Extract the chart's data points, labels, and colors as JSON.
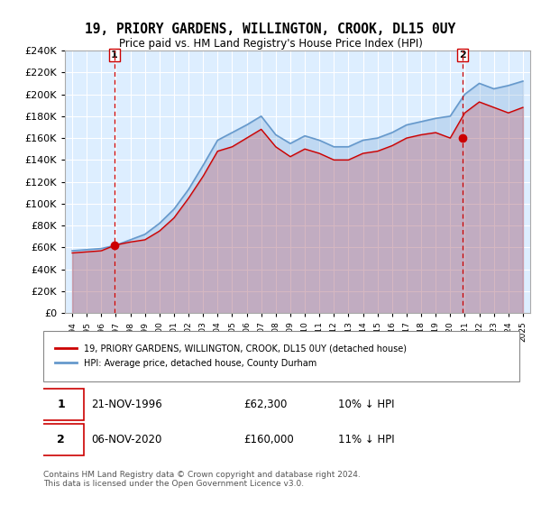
{
  "title": "19, PRIORY GARDENS, WILLINGTON, CROOK, DL15 0UY",
  "subtitle": "Price paid vs. HM Land Registry's House Price Index (HPI)",
  "legend_entry1": "19, PRIORY GARDENS, WILLINGTON, CROOK, DL15 0UY (detached house)",
  "legend_entry2": "HPI: Average price, detached house, County Durham",
  "sale1_label": "1",
  "sale1_date": "21-NOV-1996",
  "sale1_price": "£62,300",
  "sale1_hpi": "10% ↓ HPI",
  "sale2_label": "2",
  "sale2_date": "06-NOV-2020",
  "sale2_price": "£160,000",
  "sale2_hpi": "11% ↓ HPI",
  "footer": "Contains HM Land Registry data © Crown copyright and database right 2024.\nThis data is licensed under the Open Government Licence v3.0.",
  "ylim": [
    0,
    240000
  ],
  "yticks": [
    0,
    20000,
    40000,
    60000,
    80000,
    100000,
    120000,
    140000,
    160000,
    180000,
    200000,
    220000,
    240000
  ],
  "xlim_start": 1993.5,
  "xlim_end": 2025.5,
  "hpi_color": "#6699cc",
  "price_color": "#cc0000",
  "point_color": "#cc0000",
  "bg_color": "#ddeeff",
  "hatch_color": "#cccccc",
  "sale1_x": 1996.9,
  "sale2_x": 2020.85,
  "hpi_data_x": [
    1994,
    1995,
    1996,
    1997,
    1998,
    1999,
    2000,
    2001,
    2002,
    2003,
    2004,
    2005,
    2006,
    2007,
    2008,
    2009,
    2010,
    2011,
    2012,
    2013,
    2014,
    2015,
    2016,
    2017,
    2018,
    2019,
    2020,
    2021,
    2022,
    2023,
    2024,
    2025
  ],
  "hpi_data_y": [
    57000,
    58000,
    59000,
    62000,
    67000,
    72000,
    82000,
    95000,
    113000,
    135000,
    158000,
    165000,
    172000,
    180000,
    163000,
    155000,
    162000,
    158000,
    152000,
    152000,
    158000,
    160000,
    165000,
    172000,
    175000,
    178000,
    180000,
    200000,
    210000,
    205000,
    208000,
    212000
  ],
  "price_data_x": [
    1994,
    1995,
    1996,
    1997,
    1998,
    1999,
    2000,
    2001,
    2002,
    2003,
    2004,
    2005,
    2006,
    2007,
    2008,
    2009,
    2010,
    2011,
    2012,
    2013,
    2014,
    2015,
    2016,
    2017,
    2018,
    2019,
    2020,
    2021,
    2022,
    2023,
    2024,
    2025
  ],
  "price_data_y": [
    55000,
    56000,
    57000,
    62300,
    65000,
    67000,
    75000,
    87000,
    105000,
    125000,
    148000,
    152000,
    160000,
    168000,
    152000,
    143000,
    150000,
    146000,
    140000,
    140000,
    146000,
    148000,
    153000,
    160000,
    163000,
    165000,
    160000,
    183000,
    193000,
    188000,
    183000,
    188000
  ],
  "sale1_price_y": 62300,
  "sale2_price_y": 160000
}
